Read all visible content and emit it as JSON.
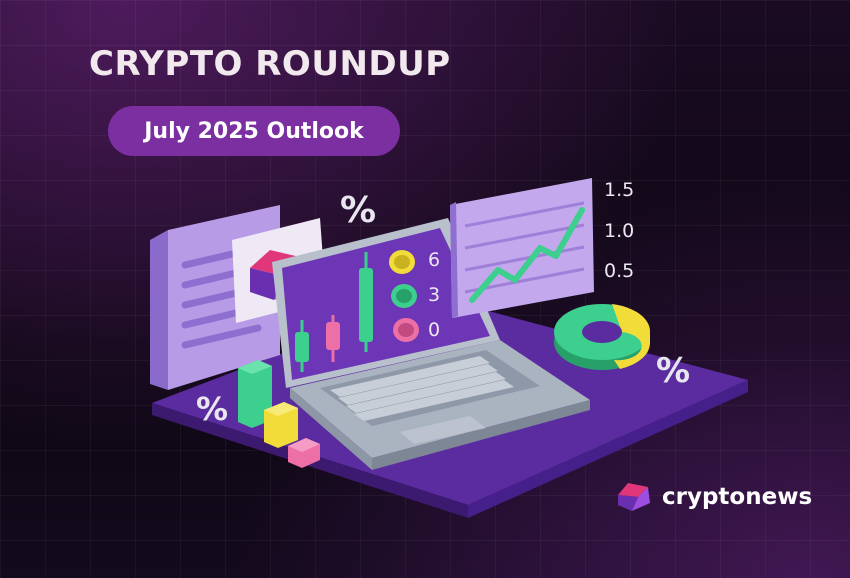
{
  "header": {
    "title": "CRYPTO ROUNDUP",
    "subtitle": "July 2025 Outlook"
  },
  "illustration": {
    "chart_axis_labels": [
      "1.5",
      "1.0",
      "0.5"
    ],
    "coin_labels": [
      "6",
      "3",
      "0"
    ],
    "percent_sign": "%"
  },
  "brand": {
    "name": "cryptonews",
    "logo_icon": "cryptonews-logo-icon"
  },
  "colors": {
    "accent_purple": "#7b2fa1",
    "platform_purple": "#5a2a9e",
    "panel_lavender": "#b79be6",
    "logo_pink": "#e0377a",
    "logo_purple": "#6a2fb0",
    "green": "#3ccf8e",
    "yellow": "#f2dc39",
    "pink": "#ec6fa6"
  }
}
